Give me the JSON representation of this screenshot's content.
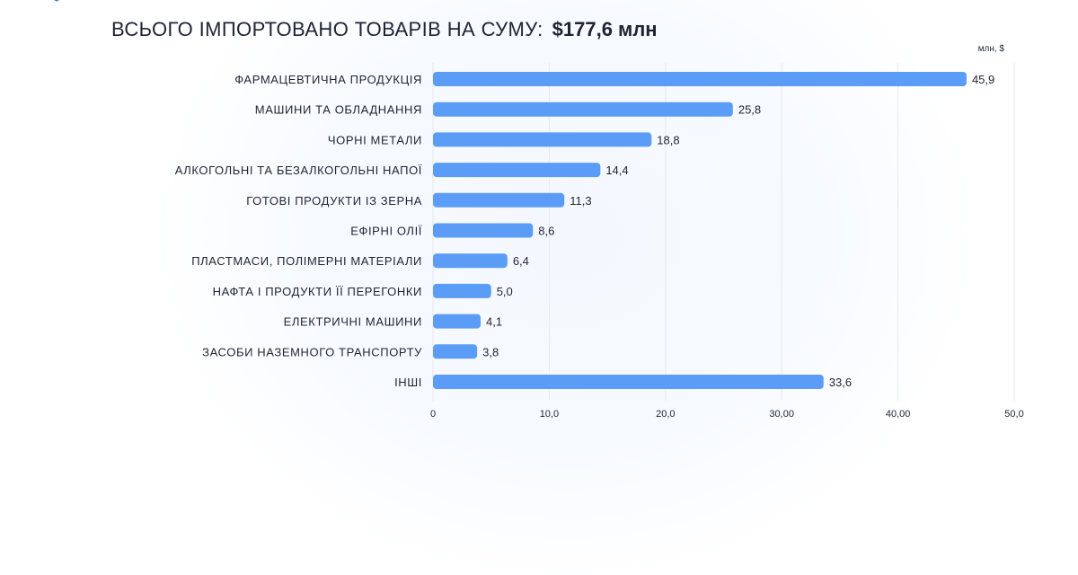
{
  "header": {
    "title_prefix": "ВСЬОГО ІМПОРТОВАНО ТОВАРІВ НА СУМУ:",
    "title_total": "$177,6 млн"
  },
  "colors": {
    "bar": "#5b9cf6",
    "grid": "#e6e9ef",
    "text": "#1f2333",
    "logo": "#4a7fd4"
  },
  "chart_data": {
    "type": "bar",
    "orientation": "horizontal",
    "unit_label": "млн, $",
    "categories": [
      "ФАРМАЦЕВТИЧНА ПРОДУКЦІЯ",
      "МАШИНИ ТА ОБЛАДНАННЯ",
      "ЧОРНІ МЕТАЛИ",
      "АЛКОГОЛЬНІ ТА БЕЗАЛКОГОЛЬНІ НАПОЇ",
      "ГОТОВІ ПРОДУКТИ ІЗ ЗЕРНА",
      "ЕФІРНІ ОЛІЇ",
      "ПЛАСТМАСИ, ПОЛІМЕРНІ МАТЕРІАЛИ",
      "НАФТА І ПРОДУКТИ ЇЇ ПЕРЕГОНКИ",
      "ЕЛЕКТРИЧНІ МАШИНИ",
      "ЗАСОБИ НАЗЕМНОГО ТРАНСПОРТУ",
      "ІНШІ"
    ],
    "values": [
      45.9,
      25.8,
      18.8,
      14.4,
      11.3,
      8.6,
      6.4,
      5.0,
      4.1,
      3.8,
      33.6
    ],
    "value_labels": [
      "45,9",
      "25,8",
      "18,8",
      "14,4",
      "11,3",
      "8,6",
      "6,4",
      "5,0",
      "4,1",
      "3,8",
      "33,6"
    ],
    "xlim": [
      0,
      50
    ],
    "ticks": [
      0,
      10,
      20,
      30,
      40,
      50
    ],
    "tick_labels": [
      "0",
      "10,0",
      "20,0",
      "30,00",
      "40,00",
      "50,0"
    ],
    "grid": true,
    "legend": "none"
  }
}
